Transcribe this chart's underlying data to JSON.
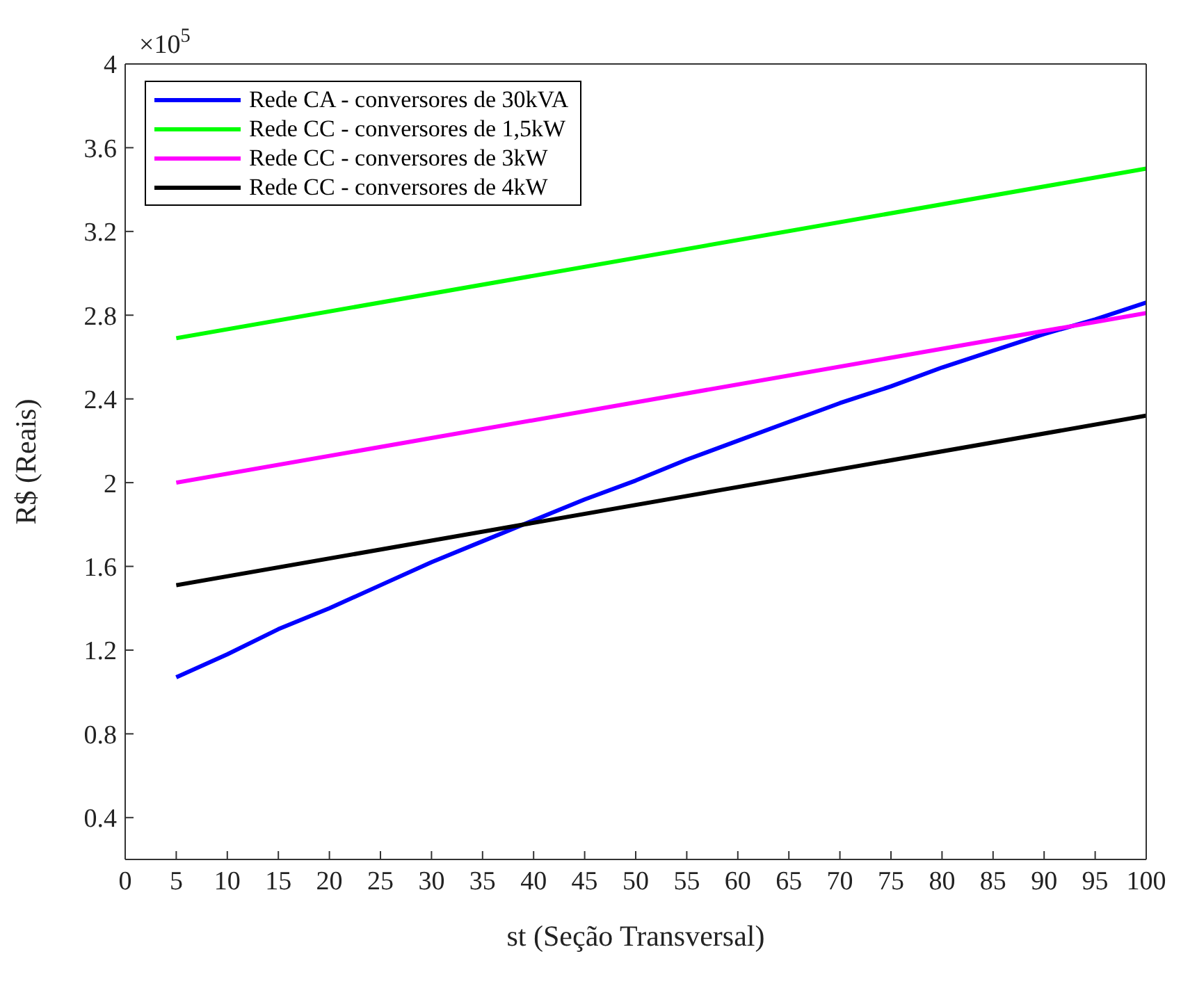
{
  "chart_data": {
    "type": "line",
    "xlabel": "st (Seção Transversal)",
    "ylabel": "R$ (Reais)",
    "annotations": [
      "×10$^{5}$"
    ],
    "xlim": [
      0,
      100
    ],
    "xticks": [
      0,
      5,
      10,
      15,
      20,
      25,
      30,
      35,
      40,
      45,
      50,
      55,
      60,
      65,
      70,
      75,
      80,
      85,
      90,
      95,
      100
    ],
    "ylim": [
      0.2,
      4
    ],
    "yticks": [
      0.4,
      0.8,
      1.2,
      1.6,
      2,
      2.4,
      2.8,
      3.2,
      3.6,
      4
    ],
    "grid": false,
    "legend": "top left",
    "marker": "none",
    "line_style": "solid",
    "series": [
      {
        "name": "Rede CA - conversores de 30kVA",
        "color": "#0000ff",
        "x": [
          5,
          10,
          15,
          20,
          25,
          30,
          35,
          40,
          45,
          50,
          55,
          60,
          65,
          70,
          75,
          80,
          85,
          90,
          95,
          100
        ],
        "values": [
          1.07,
          1.18,
          1.3,
          1.4,
          1.51,
          1.62,
          1.72,
          1.82,
          1.92,
          2.01,
          2.11,
          2.2,
          2.29,
          2.38,
          2.46,
          2.55,
          2.63,
          2.71,
          2.78,
          2.86
        ]
      },
      {
        "name": "Rede CC - conversores de 1,5kW",
        "color": "#00ff00",
        "x": [
          5,
          100
        ],
        "values": [
          2.69,
          3.5
        ]
      },
      {
        "name": "Rede CC - conversores de 3kW",
        "color": "#ff00ff",
        "x": [
          5,
          100
        ],
        "values": [
          2.0,
          2.81
        ]
      },
      {
        "name": "Rede CC - conversores de 4kW",
        "color": "#000000",
        "x": [
          5,
          100
        ],
        "values": [
          1.51,
          2.32
        ]
      }
    ]
  }
}
